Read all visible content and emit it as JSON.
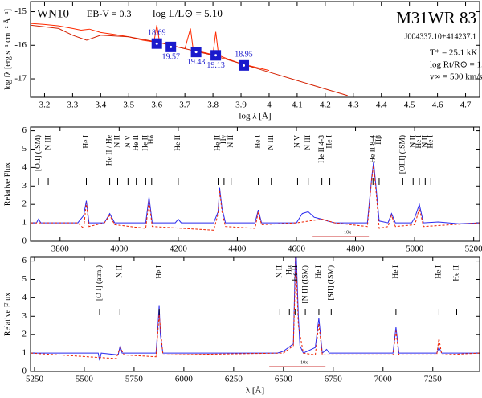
{
  "chart_data": [
    {
      "type": "line",
      "title": "M31WR 83",
      "subtitle": "J004337.10+414237.1",
      "annotations": [
        "WN10",
        "EB-V = 0.3",
        "log L/L⊙ = 5.10",
        "T* = 25.1 kK",
        "log Rt/R⊙ = 1.0",
        "v∞ = 500 km/s"
      ],
      "xlabel": "log λ [Å]",
      "ylabel": "log fλ [erg s⁻¹ cm⁻² Å⁻¹]",
      "xlim": [
        3.15,
        4.75
      ],
      "ylim": [
        -17.55,
        -14.7
      ],
      "xticks": [
        3.2,
        3.3,
        3.4,
        3.5,
        3.6,
        3.7,
        3.8,
        3.9,
        4.0,
        4.1,
        4.2,
        4.3,
        4.4,
        4.5,
        4.6,
        4.7
      ],
      "yticks": [
        -17,
        -16,
        -15
      ],
      "series": [
        {
          "color": "#ff2a00",
          "x": [
            3.15,
            3.2,
            3.25,
            3.3,
            3.33,
            3.36,
            3.4,
            3.45,
            3.5,
            3.55,
            3.59,
            3.6,
            3.61,
            3.65,
            3.7,
            3.72,
            3.73,
            3.76,
            3.8,
            3.81,
            3.82,
            3.85,
            3.9,
            3.95,
            4.0
          ],
          "values": [
            -15.35,
            -15.38,
            -15.42,
            -15.5,
            -15.55,
            -15.52,
            -15.62,
            -15.68,
            -15.75,
            -15.85,
            -15.9,
            -15.4,
            -15.92,
            -16.0,
            -16.1,
            -15.5,
            -16.15,
            -16.2,
            -16.28,
            -15.6,
            -16.3,
            -16.4,
            -16.55,
            -16.65,
            -16.75
          ]
        },
        {
          "color": "#d42000",
          "x": [
            3.15,
            3.25,
            3.3,
            3.35,
            3.4,
            3.5,
            3.6,
            3.7,
            3.8,
            3.9,
            4.0,
            4.1,
            4.2,
            4.28
          ],
          "values": [
            -15.4,
            -15.5,
            -15.7,
            -15.85,
            -15.7,
            -15.75,
            -15.9,
            -16.1,
            -16.3,
            -16.55,
            -16.8,
            -17.05,
            -17.3,
            -17.5
          ]
        }
      ],
      "photometry": {
        "color": "#1a1acc",
        "x": [
          3.6,
          3.65,
          3.74,
          3.81,
          3.91
        ],
        "values": [
          -15.95,
          -16.05,
          -16.2,
          -16.3,
          -16.6
        ],
        "magnitudes": [
          18.69,
          19.57,
          19.43,
          19.13,
          18.95
        ]
      }
    },
    {
      "type": "line",
      "ylabel": "Relative Flux",
      "xlim": [
        3700,
        5220
      ],
      "ylim": [
        0,
        6.2
      ],
      "xticks": [
        3800,
        4000,
        4200,
        4400,
        4600,
        4800,
        5000,
        5200
      ],
      "yticks": [
        0,
        1,
        2,
        3,
        4,
        5,
        6
      ],
      "series": [
        {
          "color": "#2a2aee",
          "x": [
            3700,
            3720,
            3727,
            3735,
            3860,
            3880,
            3889,
            3898,
            3950,
            3968,
            3985,
            4090,
            4101,
            4112,
            4190,
            4200,
            4210,
            4320,
            4335,
            4340,
            4348,
            4360,
            4460,
            4471,
            4482,
            4600,
            4620,
            4640,
            4660,
            4686,
            4705,
            4730,
            4840,
            4855,
            4861,
            4868,
            4880,
            4910,
            4922,
            4935,
            4990,
            5001,
            5016,
            5030,
            5080,
            5150,
            5220
          ],
          "values": [
            1,
            1,
            1.2,
            1,
            1,
            1.4,
            2.2,
            1,
            1,
            1.5,
            1,
            1,
            2.4,
            1,
            1,
            1.2,
            1,
            1,
            1.6,
            2.9,
            1.8,
            1,
            1,
            1.7,
            1,
            1,
            1.5,
            1.6,
            1.3,
            1.2,
            1.1,
            1,
            1,
            3.5,
            4.3,
            3.2,
            1.1,
            1,
            1.5,
            1,
            1,
            1.3,
            2,
            1,
            1.05,
            0.95,
            1
          ]
        },
        {
          "color": "#ee2200",
          "dash": true,
          "x": [
            3700,
            3860,
            3880,
            3889,
            3898,
            3950,
            3968,
            3985,
            4090,
            4101,
            4112,
            4320,
            4335,
            4340,
            4348,
            4360,
            4460,
            4471,
            4482,
            4600,
            4686,
            4730,
            4840,
            4855,
            4861,
            4868,
            4880,
            4910,
            4922,
            4935,
            5001,
            5016,
            5030,
            5220
          ],
          "values": [
            1,
            1,
            0.7,
            2.1,
            0.8,
            1,
            1.4,
            0.9,
            0.7,
            2.2,
            0.8,
            0.6,
            1.5,
            2.8,
            1.6,
            0.8,
            0.7,
            1.6,
            0.9,
            1,
            1.2,
            1,
            0.8,
            3.4,
            4.1,
            3,
            0.7,
            0.8,
            1.4,
            0.8,
            0.9,
            1.8,
            0.8,
            1
          ]
        }
      ],
      "lines": [
        {
          "text": "[OII] (ISM)",
          "x": 3727
        },
        {
          "text": "N III",
          "x": 3760
        },
        {
          "text": "He I",
          "x": 3889
        },
        {
          "text": "He II / He",
          "x": 3968
        },
        {
          "text": "N II",
          "x": 3995
        },
        {
          "text": "N V",
          "x": 4030
        },
        {
          "text": "He II",
          "x": 4058
        },
        {
          "text": "He II",
          "x": 4090
        },
        {
          "text": "Hδ",
          "x": 4110
        },
        {
          "text": "He II",
          "x": 4200
        },
        {
          "text": "He II",
          "x": 4335
        },
        {
          "text": "Hγ",
          "x": 4355
        },
        {
          "text": "N II",
          "x": 4379
        },
        {
          "text": "He I",
          "x": 4471
        },
        {
          "text": "N III",
          "x": 4515
        },
        {
          "text": "N V",
          "x": 4604
        },
        {
          "text": "N III",
          "x": 4640
        },
        {
          "text": "He II 4-3",
          "x": 4686
        },
        {
          "text": "He I",
          "x": 4713
        },
        {
          "text": "He II 8-4",
          "x": 4859
        },
        {
          "text": "Hβ",
          "x": 4880
        },
        {
          "text": "[OIII] (ISM)",
          "x": 4960
        },
        {
          "text": "N II",
          "x": 4995
        },
        {
          "text": "He I",
          "x": 5016
        },
        {
          "text": "N II",
          "x": 5036
        },
        {
          "text": "He I",
          "x": 5055
        }
      ],
      "inset_label": {
        "text": "10x",
        "x": 4750
      }
    },
    {
      "type": "line",
      "xlabel": "λ [Å]",
      "ylabel": "Relative Flux",
      "xlim": [
        5230,
        7485
      ],
      "ylim": [
        0,
        6.2
      ],
      "xticks": [
        5250,
        5500,
        5750,
        6000,
        6250,
        6500,
        6750,
        7000,
        7250
      ],
      "yticks": [
        0,
        1,
        2,
        3,
        4,
        5,
        6
      ],
      "series": [
        {
          "color": "#2a2aee",
          "x": [
            5230,
            5500,
            5570,
            5577,
            5585,
            5670,
            5680,
            5690,
            5860,
            5870,
            5876,
            5882,
            5895,
            6200,
            6470,
            6500,
            6550,
            6560,
            6565,
            6575,
            6583,
            6600,
            6660,
            6678,
            6695,
            6717,
            6730,
            7050,
            7065,
            7080,
            7270,
            7281,
            7295,
            7485
          ],
          "values": [
            1,
            1,
            1,
            0.6,
            1,
            0.9,
            1.4,
            1,
            1,
            2.5,
            3.6,
            2,
            1,
            1,
            1,
            1.1,
            1.5,
            6.2,
            6.2,
            3,
            1.4,
            1,
            1.3,
            2.9,
            1,
            1.2,
            1,
            1,
            2.4,
            1,
            1,
            1.3,
            1,
            1
          ]
        },
        {
          "color": "#ee2200",
          "dash": true,
          "x": [
            5230,
            5660,
            5680,
            5700,
            5860,
            5876,
            5895,
            6500,
            6550,
            6562,
            6575,
            6600,
            6660,
            6678,
            6695,
            7050,
            7065,
            7080,
            7270,
            7281,
            7295,
            7485
          ],
          "values": [
            1,
            0.7,
            1.3,
            0.9,
            0.8,
            3.1,
            0.9,
            1,
            1.4,
            6.2,
            2.5,
            1,
            0.9,
            2.6,
            0.9,
            0.9,
            2.2,
            0.9,
            0.9,
            1.8,
            0.9,
            1
          ]
        }
      ],
      "lines": [
        {
          "text": "[O I] (atm.)",
          "x": 5577
        },
        {
          "text": "N II",
          "x": 5679
        },
        {
          "text": "He I",
          "x": 5876
        },
        {
          "text": "N II",
          "x": 6482
        },
        {
          "text": "Hα",
          "x": 6530
        },
        {
          "text": "He II",
          "x": 6560
        },
        {
          "text": "[N II] (ISM)",
          "x": 6610
        },
        {
          "text": "He I",
          "x": 6678
        },
        {
          "text": "[SII] (ISM)",
          "x": 6740
        },
        {
          "text": "He I",
          "x": 7065
        },
        {
          "text": "He I",
          "x": 7281
        },
        {
          "text": "He II",
          "x": 7370
        }
      ],
      "inset_label": {
        "text": "10x",
        "x": 6570
      }
    }
  ]
}
